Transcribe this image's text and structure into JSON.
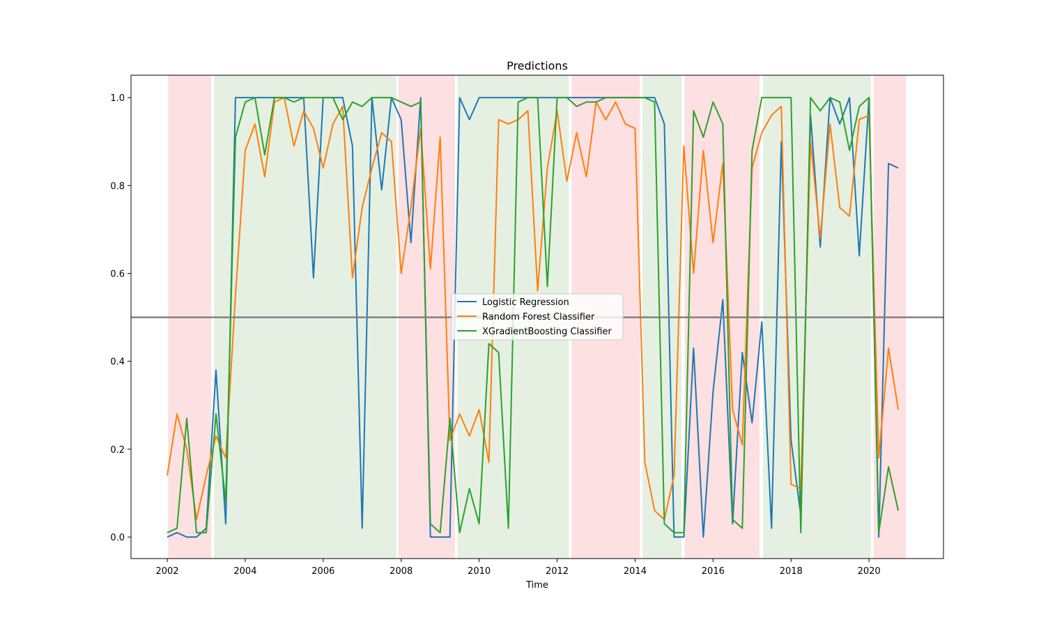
{
  "chart_data": {
    "type": "line",
    "title": "Predictions",
    "x_label": "Time",
    "x": [
      2002.0,
      2002.25,
      2002.5,
      2002.75,
      2003.0,
      2003.25,
      2003.5,
      2003.75,
      2004.0,
      2004.25,
      2004.5,
      2004.75,
      2005.0,
      2005.25,
      2005.5,
      2005.75,
      2006.0,
      2006.25,
      2006.5,
      2006.75,
      2007.0,
      2007.25,
      2007.5,
      2007.75,
      2008.0,
      2008.25,
      2008.5,
      2008.75,
      2009.0,
      2009.25,
      2009.5,
      2009.75,
      2010.0,
      2010.25,
      2010.5,
      2010.75,
      2011.0,
      2011.25,
      2011.5,
      2011.75,
      2012.0,
      2012.25,
      2012.5,
      2012.75,
      2013.0,
      2013.25,
      2013.5,
      2013.75,
      2014.0,
      2014.25,
      2014.5,
      2014.75,
      2015.0,
      2015.25,
      2015.5,
      2015.75,
      2016.0,
      2016.25,
      2016.5,
      2016.75,
      2017.0,
      2017.25,
      2017.5,
      2017.75,
      2018.0,
      2018.25,
      2018.5,
      2018.75,
      2019.0,
      2019.25,
      2019.5,
      2019.75,
      2020.0,
      2020.25,
      2020.5,
      2020.75
    ],
    "series": [
      {
        "name": "Logistic Regression",
        "color": "#1f77b4",
        "values": [
          0,
          0.01,
          0,
          0,
          0.02,
          0.38,
          0.03,
          1,
          1,
          1,
          1,
          1,
          1,
          1,
          1,
          0.59,
          1,
          1,
          1,
          0.89,
          0.02,
          1,
          0.79,
          1,
          0.95,
          0.67,
          1,
          0,
          0,
          0,
          1,
          0.95,
          1,
          1,
          1,
          1,
          1,
          1,
          1,
          1,
          1,
          1,
          1,
          1,
          1,
          1,
          1,
          1,
          1,
          1,
          1,
          0.94,
          0,
          0,
          0.43,
          0,
          0.33,
          0.54,
          0.03,
          0.42,
          0.26,
          0.49,
          0.02,
          0.9,
          0.22,
          0.05,
          0.96,
          0.66,
          1,
          0.94,
          1,
          0.64,
          1,
          0,
          0.85,
          0.84
        ]
      },
      {
        "name": "Random Forest Classifier",
        "color": "#ff7f0e",
        "values": [
          0.14,
          0.28,
          0.2,
          0.04,
          0.14,
          0.23,
          0.18,
          0.55,
          0.88,
          0.94,
          0.82,
          0.99,
          1,
          0.89,
          0.97,
          0.93,
          0.84,
          0.94,
          0.98,
          0.59,
          0.75,
          0.84,
          0.92,
          0.9,
          0.6,
          0.75,
          0.93,
          0.61,
          0.91,
          0.22,
          0.28,
          0.23,
          0.29,
          0.17,
          0.95,
          0.94,
          0.95,
          0.97,
          0.56,
          0.84,
          0.97,
          0.81,
          0.92,
          0.82,
          0.99,
          0.95,
          0.99,
          0.94,
          0.93,
          0.17,
          0.06,
          0.04,
          0.14,
          0.89,
          0.6,
          0.88,
          0.67,
          0.85,
          0.29,
          0.21,
          0.84,
          0.92,
          0.96,
          0.98,
          0.12,
          0.11,
          0.9,
          0.68,
          0.94,
          0.75,
          0.73,
          0.95,
          0.96,
          0.18,
          0.43,
          0.29
        ]
      },
      {
        "name": "XGradientBoosting Classifier",
        "color": "#2ca02c",
        "values": [
          0.01,
          0.02,
          0.27,
          0.01,
          0.01,
          0.28,
          0.08,
          0.91,
          0.99,
          1,
          0.87,
          1,
          1,
          0.99,
          1,
          1,
          1,
          1,
          0.95,
          0.99,
          0.98,
          1,
          1,
          1,
          0.99,
          0.98,
          0.99,
          0.03,
          0.01,
          0.27,
          0.01,
          0.11,
          0.03,
          0.44,
          0.42,
          0.02,
          0.99,
          1,
          1,
          0.57,
          1,
          1,
          0.98,
          0.99,
          0.99,
          1,
          1,
          1,
          1,
          1,
          0.99,
          0.03,
          0.01,
          0.01,
          0.97,
          0.91,
          0.99,
          0.94,
          0.04,
          0.02,
          0.88,
          1,
          1,
          1,
          1,
          0.01,
          1,
          0.97,
          1,
          0.99,
          0.88,
          0.98,
          1,
          0.01,
          0.16,
          0.06
        ]
      }
    ],
    "shaded_regions": [
      {
        "start": 2002.02,
        "end": 2003.13,
        "color": "#fde0e1"
      },
      {
        "start": 2003.2,
        "end": 2007.88,
        "color": "#e5f0e2"
      },
      {
        "start": 2007.93,
        "end": 2009.38,
        "color": "#fde0e1"
      },
      {
        "start": 2009.44,
        "end": 2012.3,
        "color": "#e5f0e2"
      },
      {
        "start": 2012.37,
        "end": 2014.12,
        "color": "#fde0e1"
      },
      {
        "start": 2014.19,
        "end": 2015.19,
        "color": "#e5f0e2"
      },
      {
        "start": 2015.27,
        "end": 2017.19,
        "color": "#fde0e1"
      },
      {
        "start": 2017.28,
        "end": 2020.05,
        "color": "#e5f0e2"
      },
      {
        "start": 2020.12,
        "end": 2020.95,
        "color": "#fde0e1"
      }
    ],
    "hline": 0.5,
    "hline_color": "#808080",
    "xlim": [
      2001.07,
      2021.91
    ],
    "ylim": [
      -0.049,
      1.051
    ],
    "xticks": [
      2002,
      2004,
      2006,
      2008,
      2010,
      2012,
      2014,
      2016,
      2018,
      2020
    ],
    "yticks": [
      {
        "value": 0,
        "label": "0.0"
      },
      {
        "value": 0.2,
        "label": "0.2"
      },
      {
        "value": 0.4,
        "label": "0.4"
      },
      {
        "value": 0.6,
        "label": "0.6"
      },
      {
        "value": 0.8,
        "label": "0.8"
      },
      {
        "value": 1,
        "label": "1.0"
      }
    ],
    "legend": "center",
    "grid": false
  }
}
